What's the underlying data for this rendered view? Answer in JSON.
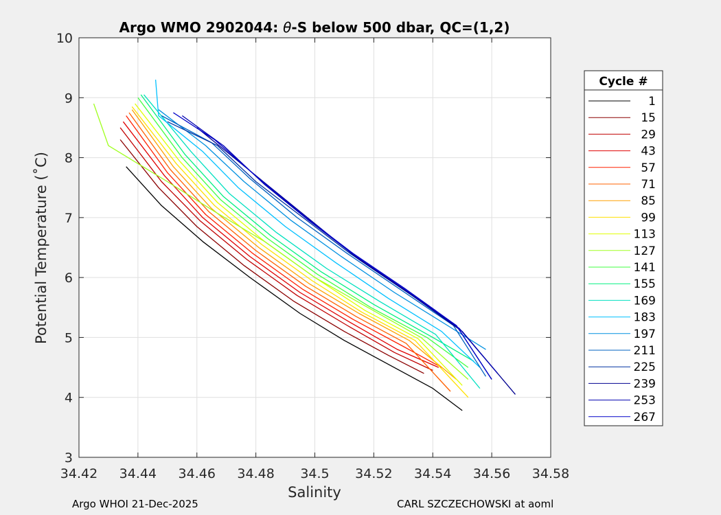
{
  "chart_data": {
    "type": "line",
    "title_pre": "Argo WMO 2902044: ",
    "title_theta": "θ",
    "title_post": "-S below 500 dbar,  QC=(1,2)",
    "xlabel": "Salinity",
    "ylabel": "Potential Temperature (˚C)",
    "xlim": [
      34.42,
      34.58
    ],
    "ylim": [
      3,
      10
    ],
    "xticks": [
      34.42,
      34.44,
      34.46,
      34.48,
      34.5,
      34.52,
      34.54,
      34.56,
      34.58
    ],
    "xtick_labels": [
      "34.42",
      "34.44",
      "34.46",
      "34.48",
      "34.5",
      "34.52",
      "34.54",
      "34.56",
      "34.58"
    ],
    "yticks": [
      3,
      4,
      5,
      6,
      7,
      8,
      9,
      10
    ],
    "ytick_labels": [
      "3",
      "4",
      "5",
      "6",
      "7",
      "8",
      "9",
      "10"
    ],
    "grid": true,
    "legend_title": "Cycle #",
    "legend_position": "outside-right",
    "legend": [
      {
        "label": "1",
        "color": "#000000"
      },
      {
        "label": "15",
        "color": "#8b0000"
      },
      {
        "label": "29",
        "color": "#c00000"
      },
      {
        "label": "43",
        "color": "#e00000"
      },
      {
        "label": "57",
        "color": "#ff2000"
      },
      {
        "label": "71",
        "color": "#ff6000"
      },
      {
        "label": "85",
        "color": "#ffa000"
      },
      {
        "label": "99",
        "color": "#ffe000"
      },
      {
        "label": "113",
        "color": "#e0ff00"
      },
      {
        "label": "127",
        "color": "#a0ff20"
      },
      {
        "label": "141",
        "color": "#40ff40"
      },
      {
        "label": "155",
        "color": "#00f080"
      },
      {
        "label": "169",
        "color": "#00e0c0"
      },
      {
        "label": "183",
        "color": "#00c0ff"
      },
      {
        "label": "197",
        "color": "#0090e0"
      },
      {
        "label": "211",
        "color": "#0060c0"
      },
      {
        "label": "225",
        "color": "#0030a0"
      },
      {
        "label": "239",
        "color": "#000090"
      },
      {
        "label": "253",
        "color": "#0000b0"
      },
      {
        "label": "267",
        "color": "#0000c8"
      }
    ],
    "series": [
      {
        "name": "1",
        "color": "#000000",
        "points": [
          [
            34.436,
            7.85
          ],
          [
            34.448,
            7.2
          ],
          [
            34.462,
            6.6
          ],
          [
            34.478,
            6.0
          ],
          [
            34.495,
            5.4
          ],
          [
            34.51,
            4.95
          ],
          [
            34.525,
            4.55
          ],
          [
            34.54,
            4.15
          ],
          [
            34.55,
            3.78
          ]
        ]
      },
      {
        "name": "15",
        "color": "#8b0000",
        "points": [
          [
            34.434,
            8.3
          ],
          [
            34.447,
            7.5
          ],
          [
            34.46,
            6.85
          ],
          [
            34.476,
            6.2
          ],
          [
            34.493,
            5.6
          ],
          [
            34.51,
            5.1
          ],
          [
            34.525,
            4.7
          ],
          [
            34.537,
            4.4
          ]
        ]
      },
      {
        "name": "29",
        "color": "#c00000",
        "points": [
          [
            34.434,
            8.5
          ],
          [
            34.448,
            7.6
          ],
          [
            34.461,
            6.95
          ],
          [
            34.477,
            6.3
          ],
          [
            34.494,
            5.7
          ],
          [
            34.511,
            5.2
          ],
          [
            34.527,
            4.75
          ],
          [
            34.54,
            4.45
          ]
        ]
      },
      {
        "name": "43",
        "color": "#e00000",
        "points": [
          [
            34.435,
            8.6
          ],
          [
            34.449,
            7.7
          ],
          [
            34.462,
            7.0
          ],
          [
            34.478,
            6.35
          ],
          [
            34.495,
            5.75
          ],
          [
            34.512,
            5.25
          ],
          [
            34.528,
            4.8
          ],
          [
            34.542,
            4.5
          ]
        ]
      },
      {
        "name": "57",
        "color": "#ff2000",
        "points": [
          [
            34.436,
            8.7
          ],
          [
            34.45,
            7.75
          ],
          [
            34.463,
            7.05
          ],
          [
            34.479,
            6.4
          ],
          [
            34.496,
            5.8
          ],
          [
            34.513,
            5.3
          ],
          [
            34.53,
            4.85
          ],
          [
            34.543,
            4.5
          ]
        ]
      },
      {
        "name": "71",
        "color": "#ff6000",
        "points": [
          [
            34.437,
            8.75
          ],
          [
            34.451,
            7.8
          ],
          [
            34.464,
            7.1
          ],
          [
            34.48,
            6.45
          ],
          [
            34.497,
            5.85
          ],
          [
            34.514,
            5.35
          ],
          [
            34.531,
            4.9
          ],
          [
            34.546,
            4.1
          ]
        ]
      },
      {
        "name": "85",
        "color": "#ffa000",
        "points": [
          [
            34.438,
            8.8
          ],
          [
            34.452,
            7.85
          ],
          [
            34.465,
            7.15
          ],
          [
            34.481,
            6.5
          ],
          [
            34.498,
            5.9
          ],
          [
            34.515,
            5.4
          ],
          [
            34.532,
            4.95
          ],
          [
            34.548,
            4.3
          ]
        ]
      },
      {
        "name": "99",
        "color": "#ffe000",
        "points": [
          [
            34.438,
            8.85
          ],
          [
            34.453,
            7.9
          ],
          [
            34.466,
            7.2
          ],
          [
            34.482,
            6.55
          ],
          [
            34.499,
            5.95
          ],
          [
            34.516,
            5.42
          ],
          [
            34.534,
            4.95
          ],
          [
            34.552,
            4.0
          ]
        ]
      },
      {
        "name": "113",
        "color": "#e0ff00",
        "points": [
          [
            34.439,
            8.9
          ],
          [
            34.454,
            7.95
          ],
          [
            34.467,
            7.25
          ],
          [
            34.483,
            6.6
          ],
          [
            34.5,
            6.0
          ],
          [
            34.517,
            5.45
          ],
          [
            34.535,
            4.98
          ],
          [
            34.55,
            4.2
          ]
        ]
      },
      {
        "name": "127",
        "color": "#a0ff20",
        "points": [
          [
            34.425,
            8.9
          ],
          [
            34.43,
            8.2
          ],
          [
            34.45,
            7.6
          ],
          [
            34.466,
            7.1
          ],
          [
            34.483,
            6.6
          ],
          [
            34.5,
            6.0
          ],
          [
            34.518,
            5.5
          ],
          [
            34.536,
            5.0
          ],
          [
            34.552,
            4.3
          ]
        ]
      },
      {
        "name": "141",
        "color": "#40ff40",
        "points": [
          [
            34.44,
            9.0
          ],
          [
            34.455,
            8.0
          ],
          [
            34.468,
            7.3
          ],
          [
            34.484,
            6.65
          ],
          [
            34.501,
            6.05
          ],
          [
            34.519,
            5.5
          ],
          [
            34.538,
            5.0
          ],
          [
            34.552,
            4.5
          ]
        ]
      },
      {
        "name": "155",
        "color": "#00f080",
        "points": [
          [
            34.441,
            9.05
          ],
          [
            34.456,
            8.05
          ],
          [
            34.469,
            7.35
          ],
          [
            34.485,
            6.7
          ],
          [
            34.502,
            6.1
          ],
          [
            34.52,
            5.55
          ],
          [
            34.54,
            5.0
          ],
          [
            34.554,
            4.6
          ]
        ]
      },
      {
        "name": "169",
        "color": "#00e0c0",
        "points": [
          [
            34.442,
            9.05
          ],
          [
            34.458,
            8.1
          ],
          [
            34.471,
            7.4
          ],
          [
            34.487,
            6.75
          ],
          [
            34.504,
            6.15
          ],
          [
            34.522,
            5.6
          ],
          [
            34.541,
            5.05
          ],
          [
            34.556,
            4.15
          ]
        ]
      },
      {
        "name": "183",
        "color": "#00c0ff",
        "points": [
          [
            34.446,
            9.3
          ],
          [
            34.447,
            8.7
          ],
          [
            34.462,
            8.1
          ],
          [
            34.474,
            7.5
          ],
          [
            34.49,
            6.85
          ],
          [
            34.507,
            6.25
          ],
          [
            34.525,
            5.65
          ],
          [
            34.543,
            5.1
          ],
          [
            34.556,
            4.5
          ]
        ]
      },
      {
        "name": "197",
        "color": "#0090e0",
        "points": [
          [
            34.447,
            8.8
          ],
          [
            34.463,
            8.2
          ],
          [
            34.476,
            7.6
          ],
          [
            34.492,
            6.95
          ],
          [
            34.509,
            6.35
          ],
          [
            34.527,
            5.75
          ],
          [
            34.545,
            5.2
          ],
          [
            34.558,
            4.8
          ]
        ]
      },
      {
        "name": "211",
        "color": "#0060c0",
        "points": [
          [
            34.448,
            8.7
          ],
          [
            34.465,
            8.25
          ],
          [
            34.478,
            7.65
          ],
          [
            34.494,
            7.0
          ],
          [
            34.511,
            6.4
          ],
          [
            34.529,
            5.8
          ],
          [
            34.547,
            5.2
          ],
          [
            34.558,
            4.35
          ]
        ]
      },
      {
        "name": "225",
        "color": "#0030a0",
        "points": [
          [
            34.45,
            8.6
          ],
          [
            34.467,
            8.2
          ],
          [
            34.48,
            7.6
          ],
          [
            34.496,
            7.0
          ],
          [
            34.512,
            6.4
          ],
          [
            34.53,
            5.8
          ],
          [
            34.548,
            5.2
          ],
          [
            34.56,
            4.3
          ]
        ]
      },
      {
        "name": "239",
        "color": "#000090",
        "points": [
          [
            34.46,
            8.5
          ],
          [
            34.47,
            8.1
          ],
          [
            34.485,
            7.5
          ],
          [
            34.5,
            6.9
          ],
          [
            34.515,
            6.3
          ],
          [
            34.533,
            5.7
          ],
          [
            34.55,
            5.1
          ],
          [
            34.568,
            4.05
          ]
        ]
      },
      {
        "name": "253",
        "color": "#0000b0",
        "points": [
          [
            34.455,
            8.7
          ],
          [
            34.469,
            8.2
          ],
          [
            34.483,
            7.55
          ],
          [
            34.498,
            6.95
          ],
          [
            34.514,
            6.35
          ],
          [
            34.532,
            5.75
          ],
          [
            34.549,
            5.15
          ],
          [
            34.562,
            4.4
          ]
        ]
      },
      {
        "name": "267",
        "color": "#0000c8",
        "points": [
          [
            34.452,
            8.75
          ],
          [
            34.466,
            8.3
          ],
          [
            34.481,
            7.65
          ],
          [
            34.497,
            7.0
          ],
          [
            34.513,
            6.4
          ],
          [
            34.531,
            5.8
          ],
          [
            34.548,
            5.2
          ],
          [
            34.56,
            4.3
          ]
        ]
      }
    ]
  },
  "footer": {
    "left": "Argo WHOI 21-Dec-2025",
    "right": "CARL SZCZECHOWSKI at aoml"
  }
}
